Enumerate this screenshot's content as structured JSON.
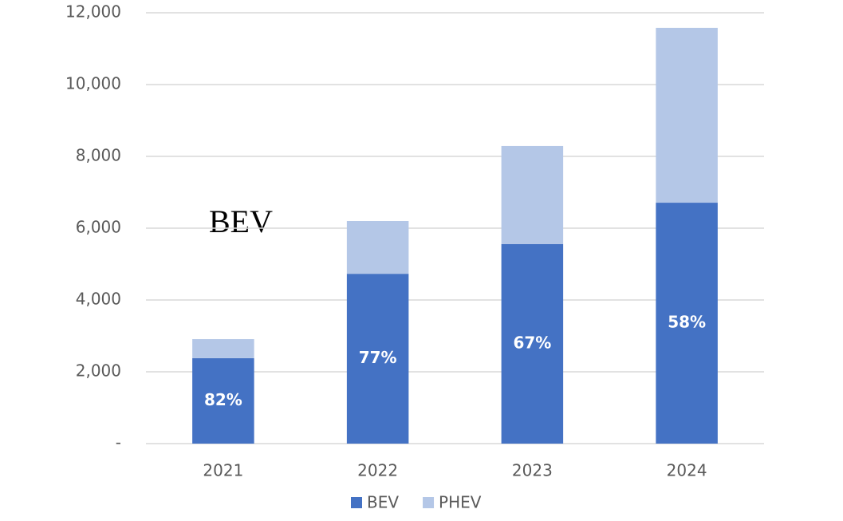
{
  "chart_data": {
    "type": "stacked_bar",
    "categories": [
      "2021",
      "2022",
      "2023",
      "2024"
    ],
    "series": [
      {
        "name": "BEV",
        "color": "#4472c4",
        "values": [
          2380,
          4730,
          5560,
          6710
        ]
      },
      {
        "name": "PHEV",
        "color": "#b4c7e7",
        "values": [
          530,
          1470,
          2730,
          4870
        ]
      }
    ],
    "share_labels": [
      "82%",
      "77%",
      "67%",
      "58%"
    ],
    "annotation": "BEV",
    "ylim": [
      0,
      12000
    ],
    "yticks": [
      {
        "value": 0,
        "label": "-"
      },
      {
        "value": 2000,
        "label": "2,000"
      },
      {
        "value": 4000,
        "label": "4,000"
      },
      {
        "value": 6000,
        "label": "6,000"
      },
      {
        "value": 8000,
        "label": "8,000"
      },
      {
        "value": 10000,
        "label": "10,000"
      },
      {
        "value": 12000,
        "label": "12,000"
      }
    ],
    "grid": true,
    "legend": "bottom"
  }
}
